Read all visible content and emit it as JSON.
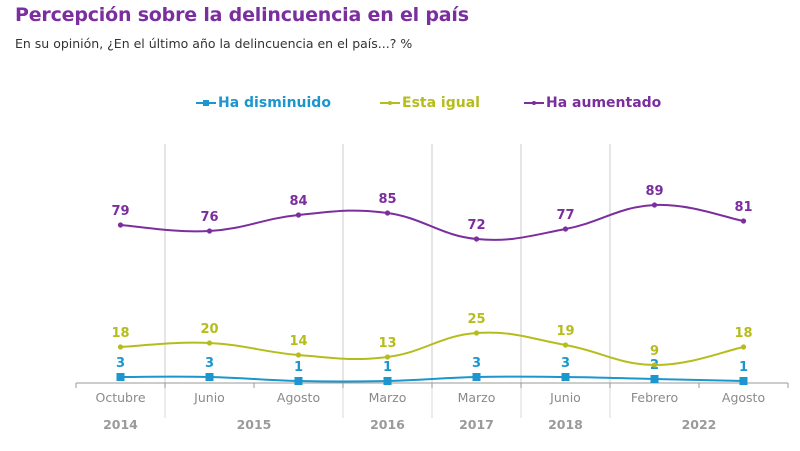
{
  "title": "Percepción sobre la delincuencia en el país",
  "subtitle": "En su opinión, ¿En el último año la delincuencia en el país...? %",
  "colors": {
    "title": "#7B2E9E",
    "disminuido": "#1B96CF",
    "igual": "#B5BD1C",
    "aumentado": "#7B2E9E",
    "grid": "#d4d4d4",
    "axis": "#9a9a9a"
  },
  "chart_data": {
    "type": "line",
    "title": "Percepción sobre la delincuencia en el país",
    "subtitle": "En su opinión, ¿En el último año la delincuencia en el país...? %",
    "xlabel": "",
    "ylabel": "",
    "ylim": [
      0,
      100
    ],
    "grid": false,
    "legend_position": "top-center",
    "categories": [
      "Octubre",
      "Junio",
      "Agosto",
      "Marzo",
      "Marzo",
      "Junio",
      "Febrero",
      "Agosto"
    ],
    "year_groups": [
      {
        "label": "2014",
        "span": [
          0,
          0
        ]
      },
      {
        "label": "2015",
        "span": [
          1,
          2
        ]
      },
      {
        "label": "2016",
        "span": [
          3,
          3
        ]
      },
      {
        "label": "2017",
        "span": [
          4,
          4
        ]
      },
      {
        "label": "2018",
        "span": [
          5,
          5
        ]
      },
      {
        "label": "2022",
        "span": [
          6,
          7
        ]
      }
    ],
    "series": [
      {
        "name": "Ha disminuido",
        "color": "#1B96CF",
        "marker": "square",
        "values": [
          3,
          3,
          1,
          1,
          3,
          3,
          2,
          1
        ]
      },
      {
        "name": "Esta igual",
        "color": "#B5BD1C",
        "marker": "dot",
        "values": [
          18,
          20,
          14,
          13,
          25,
          19,
          9,
          18
        ]
      },
      {
        "name": "Ha aumentado",
        "color": "#7B2E9E",
        "marker": "dot",
        "values": [
          79,
          76,
          84,
          85,
          72,
          77,
          89,
          81
        ]
      }
    ]
  }
}
